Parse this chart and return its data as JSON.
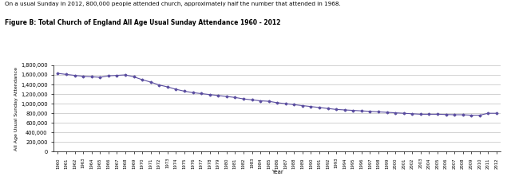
{
  "title_line1": "On a usual Sunday in 2012, 800,000 people attended church, approximately half the number that attended in 1968.",
  "title_line2": "Figure B: Total Church of England All Age Usual Sunday Attendance 1960 - 2012",
  "ylabel": "All Age Usual Sunday Attendance",
  "xlabel": "Year",
  "legend_label": "All Age Usual Sunday Attendance",
  "years": [
    1960,
    1961,
    1962,
    1963,
    1964,
    1965,
    1966,
    1967,
    1968,
    1969,
    1970,
    1971,
    1972,
    1973,
    1974,
    1975,
    1976,
    1977,
    1978,
    1979,
    1980,
    1981,
    1982,
    1983,
    1984,
    1985,
    1986,
    1987,
    1988,
    1989,
    1990,
    1991,
    1992,
    1993,
    1994,
    1995,
    1996,
    1997,
    1998,
    1999,
    2000,
    2001,
    2002,
    2003,
    2004,
    2005,
    2006,
    2007,
    2008,
    2009,
    2010,
    2011,
    2012
  ],
  "values": [
    1631000,
    1610000,
    1590000,
    1570000,
    1560000,
    1550000,
    1580000,
    1590000,
    1600000,
    1560000,
    1500000,
    1450000,
    1390000,
    1350000,
    1300000,
    1260000,
    1230000,
    1210000,
    1190000,
    1170000,
    1150000,
    1130000,
    1100000,
    1080000,
    1060000,
    1050000,
    1020000,
    1000000,
    980000,
    960000,
    940000,
    920000,
    900000,
    880000,
    870000,
    860000,
    850000,
    840000,
    830000,
    820000,
    810000,
    800000,
    790000,
    780000,
    780000,
    780000,
    775000,
    770000,
    770000,
    760000,
    760000,
    800000,
    800000
  ],
  "ylim": [
    0,
    1800000
  ],
  "yticks": [
    0,
    200000,
    400000,
    600000,
    800000,
    1000000,
    1200000,
    1400000,
    1600000,
    1800000
  ],
  "line_color": "#5B4EA0",
  "marker": "D",
  "marker_size": 1.5,
  "line_width": 0.8,
  "background_color": "#ffffff",
  "grid_color": "#c0c0c0"
}
